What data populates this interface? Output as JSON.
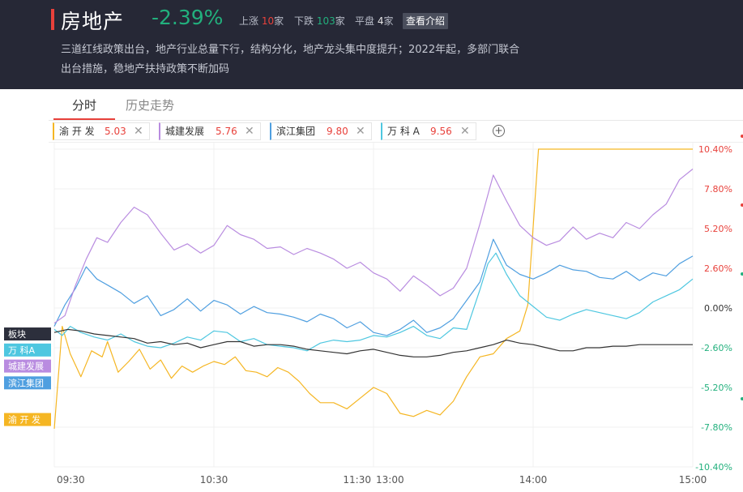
{
  "header": {
    "title": "房地产",
    "change": "-2.39%",
    "stats": [
      {
        "label": "上涨",
        "value": "10",
        "unit": "家",
        "kind": "up"
      },
      {
        "label": "下跌",
        "value": "103",
        "unit": "家",
        "kind": "down"
      },
      {
        "label": "平盘",
        "value": "4",
        "unit": "家",
        "kind": "flat"
      }
    ],
    "intro_button": "查看介绍",
    "description_line1": "三道红线政策出台，地产行业总量下行，结构分化，地产龙头集中度提升；2022年起，多部门联合",
    "description_line2": "出台措施，稳地产扶持政策不断加码"
  },
  "tabs": [
    {
      "label": "分时",
      "active": true
    },
    {
      "label": "历史走势",
      "active": false
    }
  ],
  "chips": [
    {
      "name": "渝 开 发",
      "value": "5.03",
      "color": "#f5b623"
    },
    {
      "name": "城建发展",
      "value": "5.76",
      "color": "#b98ce0"
    },
    {
      "name": "滨江集团",
      "value": "9.80",
      "color": "#4f9fe0"
    },
    {
      "name": "万 科 A",
      "value": "9.56",
      "color": "#4ec7e0"
    }
  ],
  "add_button": "+",
  "chart_data": {
    "type": "line",
    "x_ticks": [
      "09:30",
      "10:30",
      "11:30",
      "13:00",
      "14:00",
      "15:00"
    ],
    "y_ticks": [
      "10.40%",
      "7.80%",
      "5.20%",
      "2.60%",
      "0.00%",
      "-2.60%",
      "-5.20%",
      "-7.80%",
      "-10.40%"
    ],
    "ylim": [
      -10.4,
      10.4
    ],
    "grid": true,
    "series": [
      {
        "name": "板块",
        "color": "#333333",
        "tag_bg": "#2c2f3c",
        "tag_y": -1.7,
        "points": [
          [
            0,
            -1.6
          ],
          [
            5,
            -1.4
          ],
          [
            10,
            -1.5
          ],
          [
            15,
            -1.7
          ],
          [
            20,
            -1.8
          ],
          [
            25,
            -1.9
          ],
          [
            30,
            -2.0
          ],
          [
            35,
            -2.3
          ],
          [
            40,
            -2.2
          ],
          [
            45,
            -2.4
          ],
          [
            50,
            -2.3
          ],
          [
            55,
            -2.6
          ],
          [
            60,
            -2.4
          ],
          [
            65,
            -2.2
          ],
          [
            70,
            -2.2
          ],
          [
            75,
            -2.5
          ],
          [
            80,
            -2.4
          ],
          [
            85,
            -2.4
          ],
          [
            90,
            -2.5
          ],
          [
            95,
            -2.7
          ],
          [
            100,
            -2.8
          ],
          [
            105,
            -2.9
          ],
          [
            110,
            -3.0
          ],
          [
            115,
            -2.8
          ],
          [
            120,
            -2.7
          ],
          [
            125,
            -2.9
          ],
          [
            130,
            -3.1
          ],
          [
            135,
            -3.2
          ],
          [
            140,
            -3.2
          ],
          [
            145,
            -3.1
          ],
          [
            150,
            -2.9
          ],
          [
            155,
            -2.8
          ],
          [
            160,
            -2.6
          ],
          [
            165,
            -2.4
          ],
          [
            170,
            -2.1
          ],
          [
            175,
            -2.3
          ],
          [
            180,
            -2.4
          ],
          [
            185,
            -2.6
          ],
          [
            190,
            -2.8
          ],
          [
            195,
            -2.8
          ],
          [
            200,
            -2.6
          ],
          [
            205,
            -2.6
          ],
          [
            210,
            -2.5
          ],
          [
            215,
            -2.5
          ],
          [
            220,
            -2.4
          ],
          [
            225,
            -2.4
          ],
          [
            230,
            -2.4
          ],
          [
            235,
            -2.4
          ],
          [
            240,
            -2.4
          ]
        ]
      },
      {
        "name": "万 科A",
        "color": "#4ec7e0",
        "tag_bg": "#4ec7e0",
        "tag_y": -2.75,
        "points": [
          [
            0,
            -1.4
          ],
          [
            3,
            -1.8
          ],
          [
            6,
            -1.2
          ],
          [
            10,
            -1.6
          ],
          [
            15,
            -1.9
          ],
          [
            20,
            -2.1
          ],
          [
            25,
            -1.7
          ],
          [
            30,
            -2.2
          ],
          [
            35,
            -2.5
          ],
          [
            40,
            -2.6
          ],
          [
            45,
            -2.3
          ],
          [
            50,
            -1.9
          ],
          [
            55,
            -2.1
          ],
          [
            60,
            -1.5
          ],
          [
            65,
            -1.6
          ],
          [
            70,
            -2.2
          ],
          [
            75,
            -2.0
          ],
          [
            80,
            -2.4
          ],
          [
            85,
            -2.5
          ],
          [
            90,
            -2.6
          ],
          [
            95,
            -2.8
          ],
          [
            100,
            -2.3
          ],
          [
            105,
            -2.1
          ],
          [
            110,
            -2.2
          ],
          [
            115,
            -2.1
          ],
          [
            120,
            -1.8
          ],
          [
            125,
            -1.9
          ],
          [
            130,
            -1.6
          ],
          [
            135,
            -1.2
          ],
          [
            140,
            -1.8
          ],
          [
            145,
            -2.0
          ],
          [
            150,
            -1.3
          ],
          [
            155,
            -1.4
          ],
          [
            160,
            1.2
          ],
          [
            163,
            2.9
          ],
          [
            166,
            3.6
          ],
          [
            170,
            2.2
          ],
          [
            175,
            0.8
          ],
          [
            180,
            0.1
          ],
          [
            185,
            -0.6
          ],
          [
            190,
            -0.8
          ],
          [
            195,
            -0.4
          ],
          [
            200,
            -0.1
          ],
          [
            205,
            -0.3
          ],
          [
            210,
            -0.5
          ],
          [
            215,
            -0.7
          ],
          [
            220,
            -0.3
          ],
          [
            225,
            0.4
          ],
          [
            230,
            0.8
          ],
          [
            235,
            1.2
          ],
          [
            240,
            1.9
          ]
        ]
      },
      {
        "name": "城建发展",
        "color": "#b98ce0",
        "tag_bg": "#b98ce0",
        "tag_y": -3.8,
        "points": [
          [
            0,
            -1.0
          ],
          [
            4,
            -0.5
          ],
          [
            8,
            1.5
          ],
          [
            12,
            3.2
          ],
          [
            16,
            4.6
          ],
          [
            20,
            4.3
          ],
          [
            25,
            5.6
          ],
          [
            30,
            6.6
          ],
          [
            35,
            6.1
          ],
          [
            40,
            4.9
          ],
          [
            45,
            3.8
          ],
          [
            50,
            4.2
          ],
          [
            55,
            3.6
          ],
          [
            60,
            4.1
          ],
          [
            65,
            5.4
          ],
          [
            70,
            4.8
          ],
          [
            75,
            4.5
          ],
          [
            80,
            3.9
          ],
          [
            85,
            4.0
          ],
          [
            90,
            3.5
          ],
          [
            95,
            3.9
          ],
          [
            100,
            3.6
          ],
          [
            105,
            3.2
          ],
          [
            110,
            2.6
          ],
          [
            115,
            3.0
          ],
          [
            120,
            2.3
          ],
          [
            125,
            1.9
          ],
          [
            130,
            1.1
          ],
          [
            135,
            2.1
          ],
          [
            140,
            1.5
          ],
          [
            145,
            0.8
          ],
          [
            150,
            1.3
          ],
          [
            155,
            2.6
          ],
          [
            160,
            5.5
          ],
          [
            165,
            8.7
          ],
          [
            170,
            7.0
          ],
          [
            175,
            5.4
          ],
          [
            180,
            4.6
          ],
          [
            185,
            4.1
          ],
          [
            190,
            4.4
          ],
          [
            195,
            5.3
          ],
          [
            200,
            4.5
          ],
          [
            205,
            4.9
          ],
          [
            210,
            4.6
          ],
          [
            215,
            5.6
          ],
          [
            220,
            5.2
          ],
          [
            225,
            6.1
          ],
          [
            230,
            6.8
          ],
          [
            235,
            8.4
          ],
          [
            240,
            9.1
          ]
        ]
      },
      {
        "name": "滨江集团",
        "color": "#4f9fe0",
        "tag_bg": "#4f9fe0",
        "tag_y": -4.9,
        "points": [
          [
            0,
            -1.2
          ],
          [
            4,
            0.2
          ],
          [
            8,
            1.3
          ],
          [
            12,
            2.7
          ],
          [
            16,
            1.9
          ],
          [
            20,
            1.5
          ],
          [
            25,
            1.0
          ],
          [
            30,
            0.3
          ],
          [
            35,
            0.8
          ],
          [
            40,
            -0.5
          ],
          [
            45,
            -0.1
          ],
          [
            50,
            0.6
          ],
          [
            55,
            -0.2
          ],
          [
            60,
            0.5
          ],
          [
            65,
            0.2
          ],
          [
            70,
            -0.4
          ],
          [
            75,
            0.1
          ],
          [
            80,
            -0.3
          ],
          [
            85,
            -0.4
          ],
          [
            90,
            -0.6
          ],
          [
            95,
            -0.9
          ],
          [
            100,
            -0.4
          ],
          [
            105,
            -0.7
          ],
          [
            110,
            -1.3
          ],
          [
            115,
            -0.9
          ],
          [
            120,
            -1.6
          ],
          [
            125,
            -1.8
          ],
          [
            130,
            -1.4
          ],
          [
            135,
            -0.8
          ],
          [
            140,
            -1.6
          ],
          [
            145,
            -1.3
          ],
          [
            150,
            -0.7
          ],
          [
            155,
            0.5
          ],
          [
            160,
            1.7
          ],
          [
            165,
            4.5
          ],
          [
            170,
            2.8
          ],
          [
            175,
            2.2
          ],
          [
            180,
            1.9
          ],
          [
            185,
            2.3
          ],
          [
            190,
            2.8
          ],
          [
            195,
            2.5
          ],
          [
            200,
            2.4
          ],
          [
            205,
            2.0
          ],
          [
            210,
            1.9
          ],
          [
            215,
            2.4
          ],
          [
            220,
            1.8
          ],
          [
            225,
            2.3
          ],
          [
            230,
            2.1
          ],
          [
            235,
            2.9
          ],
          [
            240,
            3.4
          ]
        ]
      },
      {
        "name": "渝 开 发",
        "color": "#f5b623",
        "tag_bg": "#f5b623",
        "tag_y": -7.3,
        "points": [
          [
            0,
            -7.9
          ],
          [
            3,
            -1.2
          ],
          [
            6,
            -3.0
          ],
          [
            10,
            -4.5
          ],
          [
            14,
            -2.8
          ],
          [
            18,
            -3.2
          ],
          [
            20,
            -2.2
          ],
          [
            24,
            -4.2
          ],
          [
            28,
            -3.5
          ],
          [
            32,
            -2.7
          ],
          [
            36,
            -4.0
          ],
          [
            40,
            -3.4
          ],
          [
            44,
            -4.6
          ],
          [
            48,
            -3.8
          ],
          [
            52,
            -4.2
          ],
          [
            56,
            -3.8
          ],
          [
            60,
            -3.5
          ],
          [
            64,
            -3.7
          ],
          [
            68,
            -3.2
          ],
          [
            72,
            -4.1
          ],
          [
            76,
            -4.2
          ],
          [
            80,
            -4.5
          ],
          [
            84,
            -3.9
          ],
          [
            88,
            -4.2
          ],
          [
            92,
            -4.8
          ],
          [
            96,
            -5.6
          ],
          [
            100,
            -6.2
          ],
          [
            105,
            -6.2
          ],
          [
            110,
            -6.6
          ],
          [
            115,
            -5.9
          ],
          [
            120,
            -5.2
          ],
          [
            125,
            -5.6
          ],
          [
            130,
            -6.9
          ],
          [
            135,
            -7.1
          ],
          [
            140,
            -6.7
          ],
          [
            145,
            -7.0
          ],
          [
            150,
            -6.1
          ],
          [
            155,
            -4.5
          ],
          [
            160,
            -3.2
          ],
          [
            165,
            -3.0
          ],
          [
            170,
            -2.0
          ],
          [
            175,
            -1.5
          ],
          [
            178,
            0.2
          ],
          [
            182,
            10.4
          ],
          [
            190,
            10.4
          ],
          [
            200,
            10.4
          ],
          [
            210,
            10.4
          ],
          [
            220,
            10.4
          ],
          [
            230,
            10.4
          ],
          [
            240,
            10.4
          ]
        ]
      }
    ]
  }
}
